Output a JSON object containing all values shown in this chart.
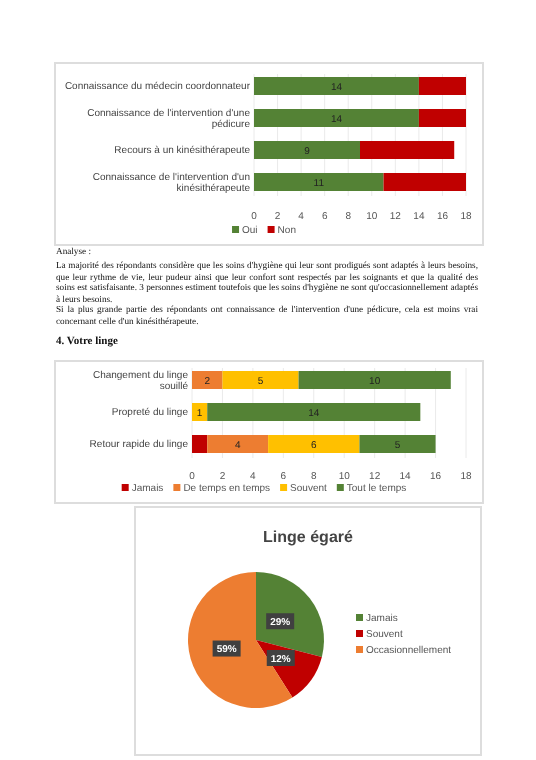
{
  "chart_data": [
    {
      "type": "bar",
      "orientation": "horizontal",
      "stacked": true,
      "categories": [
        "Connaissance du médecin coordonnateur",
        "Connaissance de l'intervention d'une pédicure",
        "Recours à un kinésithérapeute",
        "Connaissance de l'intervention d'un kinésithérapeute"
      ],
      "series": [
        {
          "name": "Oui",
          "color": "#548235",
          "values": [
            14,
            14,
            9,
            11
          ],
          "value_labels": [
            "14",
            "14",
            "9",
            "11"
          ]
        },
        {
          "name": "Non",
          "color": "#c00000",
          "values": [
            4,
            4,
            8,
            7
          ]
        }
      ],
      "xlim": [
        0,
        18
      ],
      "xticks": [
        0,
        2,
        4,
        6,
        8,
        10,
        12,
        14,
        16,
        18
      ],
      "grid": "x",
      "legend": "bottom",
      "annotations": [
        "Analyse :",
        "La majorité des répondants considère que les soins d'hygiène qui leur sont prodigués sont adaptés à leurs besoins, que leur rythme de vie, leur pudeur ainsi que leur confort sont respectés par les soignants et que la qualité des soins est satisfaisante. 3 personnes estiment toutefois que les soins d'hygiène ne sont qu'occasionnellement adaptés à leurs besoins.",
        "Si la plus grande partie des répondants ont connaissance de l'intervention d'une pédicure, cela est moins vrai concernant celle d'un kinésithérapeute."
      ]
    },
    {
      "type": "bar",
      "orientation": "horizontal",
      "stacked": true,
      "title": "4. Votre linge",
      "categories": [
        "Changement du linge souillé",
        "Propreté du linge",
        "Retour rapide du linge"
      ],
      "series": [
        {
          "name": "Jamais",
          "color": "#c00000",
          "values": [
            0,
            0,
            1
          ]
        },
        {
          "name": "De temps en temps",
          "color": "#ed7d31",
          "values": [
            2,
            0,
            4
          ],
          "value_labels": [
            "2",
            null,
            "4"
          ]
        },
        {
          "name": "Souvent",
          "color": "#ffc000",
          "values": [
            5,
            1,
            6
          ],
          "value_labels": [
            "5",
            "1",
            "6"
          ]
        },
        {
          "name": "Tout le temps",
          "color": "#548235",
          "values": [
            10,
            14,
            5
          ],
          "value_labels": [
            "10",
            "14",
            "5"
          ]
        }
      ],
      "xlim": [
        0,
        18
      ],
      "xticks": [
        0,
        2,
        4,
        6,
        8,
        10,
        12,
        14,
        16,
        18
      ],
      "grid": "x",
      "legend": "bottom"
    },
    {
      "type": "pie",
      "title": "Linge égaré",
      "categories": [
        "Jamais",
        "Souvent",
        "Occasionnellement"
      ],
      "values": [
        29,
        12,
        59
      ],
      "colors": [
        "#548235",
        "#c00000",
        "#ed7d31"
      ],
      "value_labels": [
        "29%",
        "12%",
        "59%"
      ],
      "legend": "right"
    }
  ]
}
